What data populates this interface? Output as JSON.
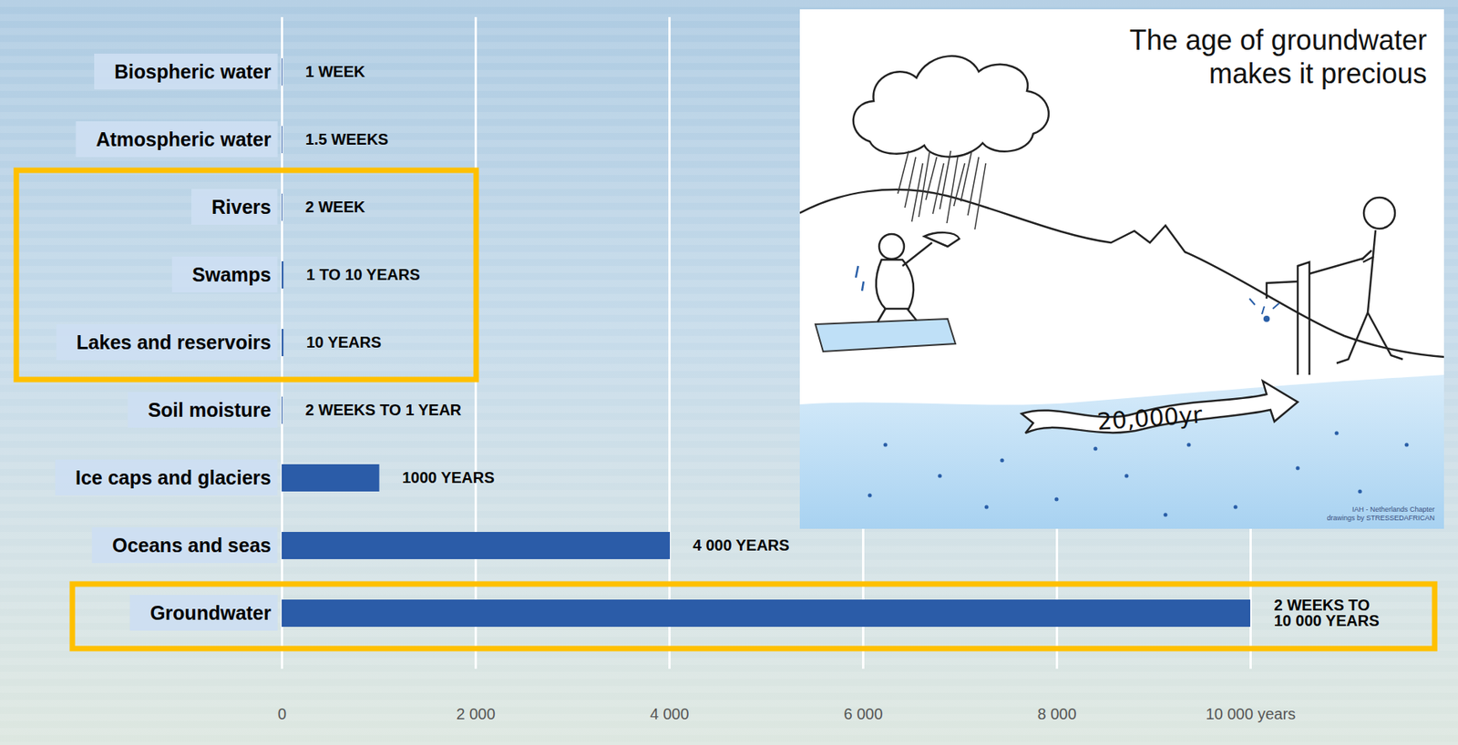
{
  "chart_data": {
    "type": "bar",
    "orientation": "horizontal",
    "categories": [
      "Biospheric water",
      "Atmospheric water",
      "Rivers",
      "Swamps",
      "Lakes and reservoirs",
      "Soil moisture",
      "Ice caps and glaciers",
      "Oceans and seas",
      "Groundwater"
    ],
    "values": [
      0.019,
      0.029,
      0.038,
      10,
      10,
      1,
      1000,
      4000,
      10000
    ],
    "value_labels": [
      "1 WEEK",
      "1.5 WEEKS",
      "2 WEEK",
      "1 TO 10 YEARS",
      "10 YEARS",
      "2 WEEKS TO 1 YEAR",
      "1000 YEARS",
      "4 000 YEARS",
      "2 WEEKS TO 10 000 YEARS"
    ],
    "data_labels": true,
    "color": "#2b5ca8",
    "xlim": [
      0,
      10000
    ],
    "xticks": [
      0,
      {
        "value": 2000,
        "label": "2 000"
      },
      {
        "value": 4000,
        "label": "4 000"
      },
      {
        "value": 6000,
        "label": "6 000"
      },
      {
        "value": 8000,
        "label": "8 000"
      },
      {
        "value": 10000,
        "label": "10 000 years"
      }
    ],
    "grid": true,
    "annotations": [
      {
        "text": "The age of groundwater makes it precious"
      },
      {
        "text": "20,000yr"
      },
      {
        "text": "IAH - Netherlands Chapter"
      },
      {
        "text": "drawings by STRESSEDAFRICAN"
      }
    ]
  }
}
